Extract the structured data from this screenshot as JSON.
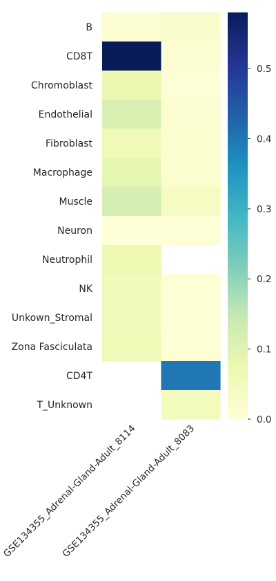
{
  "chart_data": {
    "type": "heatmap",
    "rows": [
      "B",
      "CD8T",
      "Chromoblast",
      "Endothelial",
      "Fibroblast",
      "Macrophage",
      "Muscle",
      "Neuron",
      "Neutrophil",
      "NK",
      "Unkown_Stromal",
      "Zona Fasciculata",
      "CD4T",
      "T_Unknown"
    ],
    "columns": [
      "GSE134355_Adrenal-Gland-Adult_8114",
      "GSE134355_Adrenal-Gland-Adult_8083"
    ],
    "values": [
      [
        0.012,
        0.028
      ],
      [
        0.58,
        0.012
      ],
      [
        0.075,
        0.008
      ],
      [
        0.11,
        0.014
      ],
      [
        0.062,
        0.022
      ],
      [
        0.088,
        0.022
      ],
      [
        0.12,
        0.042
      ],
      [
        0.005,
        0.006
      ],
      [
        0.07,
        null
      ],
      [
        0.055,
        0.01
      ],
      [
        0.055,
        0.01
      ],
      [
        0.06,
        0.01
      ],
      [
        null,
        0.4
      ],
      [
        null,
        0.05
      ]
    ],
    "colorbar": {
      "min": 0.0,
      "max": 0.58,
      "ticks": [
        0.0,
        0.1,
        0.2,
        0.3,
        0.4,
        0.5
      ],
      "tick_labels": [
        "0.0",
        "0.1",
        "0.2",
        "0.3",
        "0.4",
        "0.5"
      ],
      "colormap": "YlGnBu",
      "colors": [
        "#ffffd9",
        "#edf8b1",
        "#c7e9b4",
        "#7fcdbb",
        "#41b6c4",
        "#1d91c0",
        "#225ea8",
        "#253494",
        "#081d58"
      ]
    },
    "missing_color": "#ffffff"
  }
}
